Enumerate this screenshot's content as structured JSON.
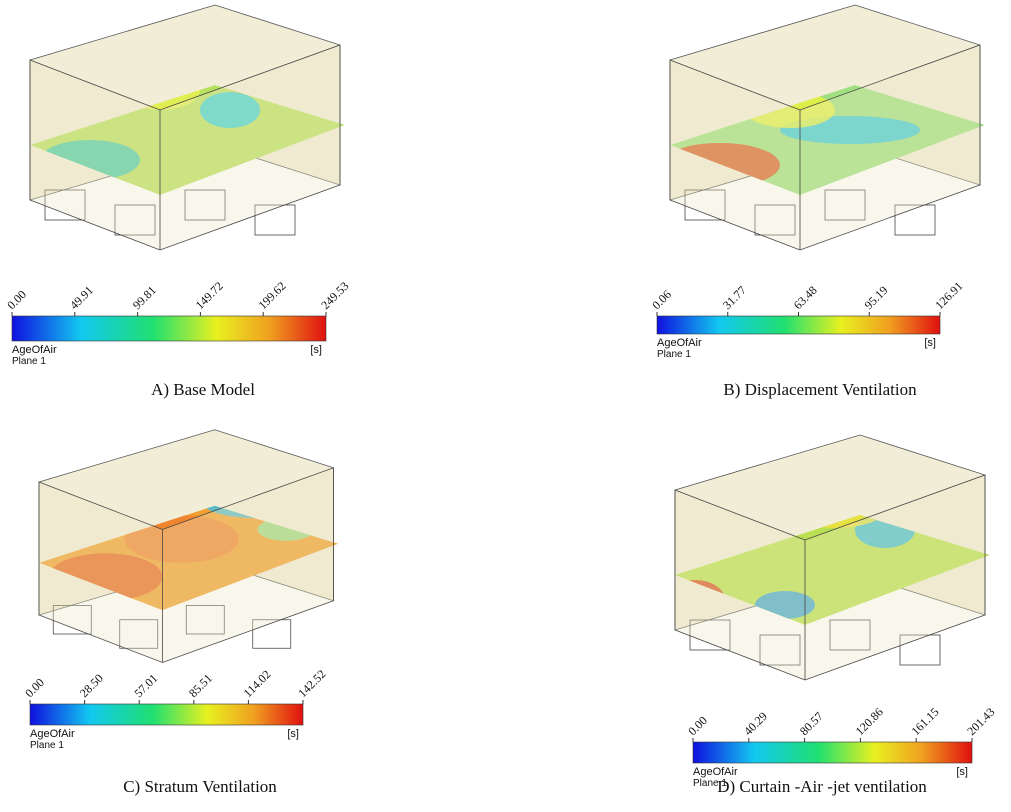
{
  "panels": [
    {
      "caption": "A) Base Model",
      "colorbar": {
        "ticks": [
          "0.00",
          "49.91",
          "99.81",
          "149.72",
          "199.62",
          "249.53"
        ],
        "variable": "AgeOfAir",
        "location": "Plane 1",
        "unit": "[s]"
      }
    },
    {
      "caption": "B) Displacement Ventilation",
      "colorbar": {
        "ticks": [
          "0.06",
          "31.77",
          "63.48",
          "95.19",
          "126.91"
        ],
        "variable": "AgeOfAir",
        "location": "Plane 1",
        "unit": "[s]"
      }
    },
    {
      "caption": "C) Stratum Ventilation",
      "colorbar": {
        "ticks": [
          "0.00",
          "28.50",
          "57.01",
          "85.51",
          "114.02",
          "142.52"
        ],
        "variable": "AgeOfAir",
        "location": "Plane 1",
        "unit": "[s]"
      }
    },
    {
      "caption": "D) Curtain -Air -jet ventilation",
      "colorbar": {
        "ticks": [
          "0.00",
          "40.29",
          "80.57",
          "120.86",
          "161.15",
          "201.43"
        ],
        "variable": "AgeOfAir",
        "location": "Plane 1",
        "unit": "[s]"
      }
    }
  ]
}
